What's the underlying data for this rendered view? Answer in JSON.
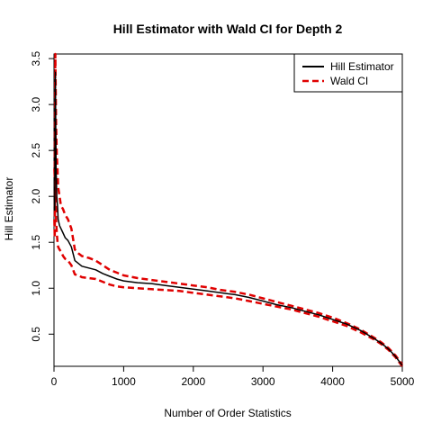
{
  "chart_data": {
    "type": "line",
    "title": "Hill Estimator with Wald CI for Depth 2",
    "xlabel": "Number of Order Statistics",
    "ylabel": "Hill Estimator",
    "xlim": [
      0,
      5000
    ],
    "ylim": [
      0.15,
      3.55
    ],
    "xticks": [
      0,
      1000,
      2000,
      3000,
      4000,
      5000
    ],
    "yticks": [
      0.5,
      1.0,
      1.5,
      2.0,
      2.5,
      3.0,
      3.5
    ],
    "xtick_labels": [
      "0",
      "1000",
      "2000",
      "3000",
      "4000",
      "5000"
    ],
    "ytick_labels": [
      "0.5",
      "1.0",
      "1.5",
      "2.0",
      "2.5",
      "3.0",
      "3.5"
    ],
    "grid": false,
    "legend": {
      "position": "top-right",
      "entries": [
        {
          "label": "Hill Estimator",
          "color": "#000000",
          "style": "solid"
        },
        {
          "label": "Wald CI",
          "color": "#e00000",
          "style": "dashed"
        }
      ]
    },
    "series": [
      {
        "name": "Hill Estimator",
        "color": "#000000",
        "style": "solid",
        "x": [
          5,
          10,
          15,
          20,
          30,
          40,
          50,
          60,
          80,
          100,
          130,
          160,
          200,
          250,
          300,
          350,
          400,
          500,
          600,
          700,
          800,
          900,
          1000,
          1200,
          1400,
          1600,
          1800,
          2000,
          2200,
          2400,
          2600,
          2800,
          3000,
          3200,
          3400,
          3600,
          3800,
          4000,
          4200,
          4400,
          4600,
          4700,
          4800,
          4900,
          4950,
          5000
        ],
        "y": [
          2.0,
          1.85,
          2.6,
          3.35,
          2.3,
          2.0,
          1.9,
          1.75,
          1.68,
          1.65,
          1.6,
          1.55,
          1.52,
          1.45,
          1.3,
          1.27,
          1.24,
          1.22,
          1.2,
          1.16,
          1.13,
          1.1,
          1.08,
          1.06,
          1.05,
          1.03,
          1.01,
          0.99,
          0.97,
          0.95,
          0.93,
          0.9,
          0.86,
          0.82,
          0.79,
          0.75,
          0.71,
          0.66,
          0.61,
          0.54,
          0.45,
          0.4,
          0.34,
          0.26,
          0.21,
          0.16
        ]
      },
      {
        "name": "Wald CI",
        "color": "#e00000",
        "style": "dashed",
        "x": [
          5,
          10,
          15,
          20,
          30,
          40,
          50,
          60,
          80,
          100,
          130,
          160,
          200,
          250,
          300,
          350,
          400,
          500,
          600,
          700,
          800,
          900,
          1000,
          1200,
          1400,
          1600,
          1800,
          2000,
          2200,
          2400,
          2600,
          2800,
          3000,
          3200,
          3400,
          3600,
          3800,
          4000,
          4200,
          4400,
          4600,
          4700,
          4800,
          4900,
          4950,
          5000
        ],
        "y": [
          2.3,
          2.2,
          3.2,
          3.55,
          2.8,
          2.45,
          2.3,
          2.1,
          2.0,
          1.9,
          1.86,
          1.8,
          1.75,
          1.65,
          1.42,
          1.38,
          1.35,
          1.33,
          1.3,
          1.25,
          1.2,
          1.17,
          1.14,
          1.11,
          1.09,
          1.07,
          1.05,
          1.03,
          1.01,
          0.98,
          0.96,
          0.93,
          0.89,
          0.85,
          0.81,
          0.77,
          0.73,
          0.68,
          0.62,
          0.55,
          0.46,
          0.41,
          0.35,
          0.27,
          0.22,
          0.17
        ]
      },
      {
        "name": "Wald CI",
        "color": "#e00000",
        "style": "dashed",
        "x": [
          5,
          10,
          15,
          20,
          30,
          40,
          50,
          60,
          80,
          100,
          130,
          160,
          200,
          250,
          300,
          350,
          400,
          500,
          600,
          700,
          800,
          900,
          1000,
          1200,
          1400,
          1600,
          1800,
          2000,
          2200,
          2400,
          2600,
          2800,
          3000,
          3200,
          3400,
          3600,
          3800,
          4000,
          4200,
          4400,
          4600,
          4700,
          4800,
          4900,
          4950,
          5000
        ],
        "y": [
          1.75,
          1.55,
          2.1,
          2.7,
          1.75,
          1.6,
          1.5,
          1.45,
          1.42,
          1.4,
          1.35,
          1.32,
          1.3,
          1.25,
          1.15,
          1.14,
          1.12,
          1.11,
          1.1,
          1.07,
          1.04,
          1.02,
          1.01,
          1.0,
          0.99,
          0.98,
          0.97,
          0.95,
          0.93,
          0.91,
          0.89,
          0.86,
          0.83,
          0.8,
          0.77,
          0.73,
          0.69,
          0.64,
          0.59,
          0.52,
          0.44,
          0.39,
          0.33,
          0.25,
          0.2,
          0.15
        ]
      }
    ]
  }
}
